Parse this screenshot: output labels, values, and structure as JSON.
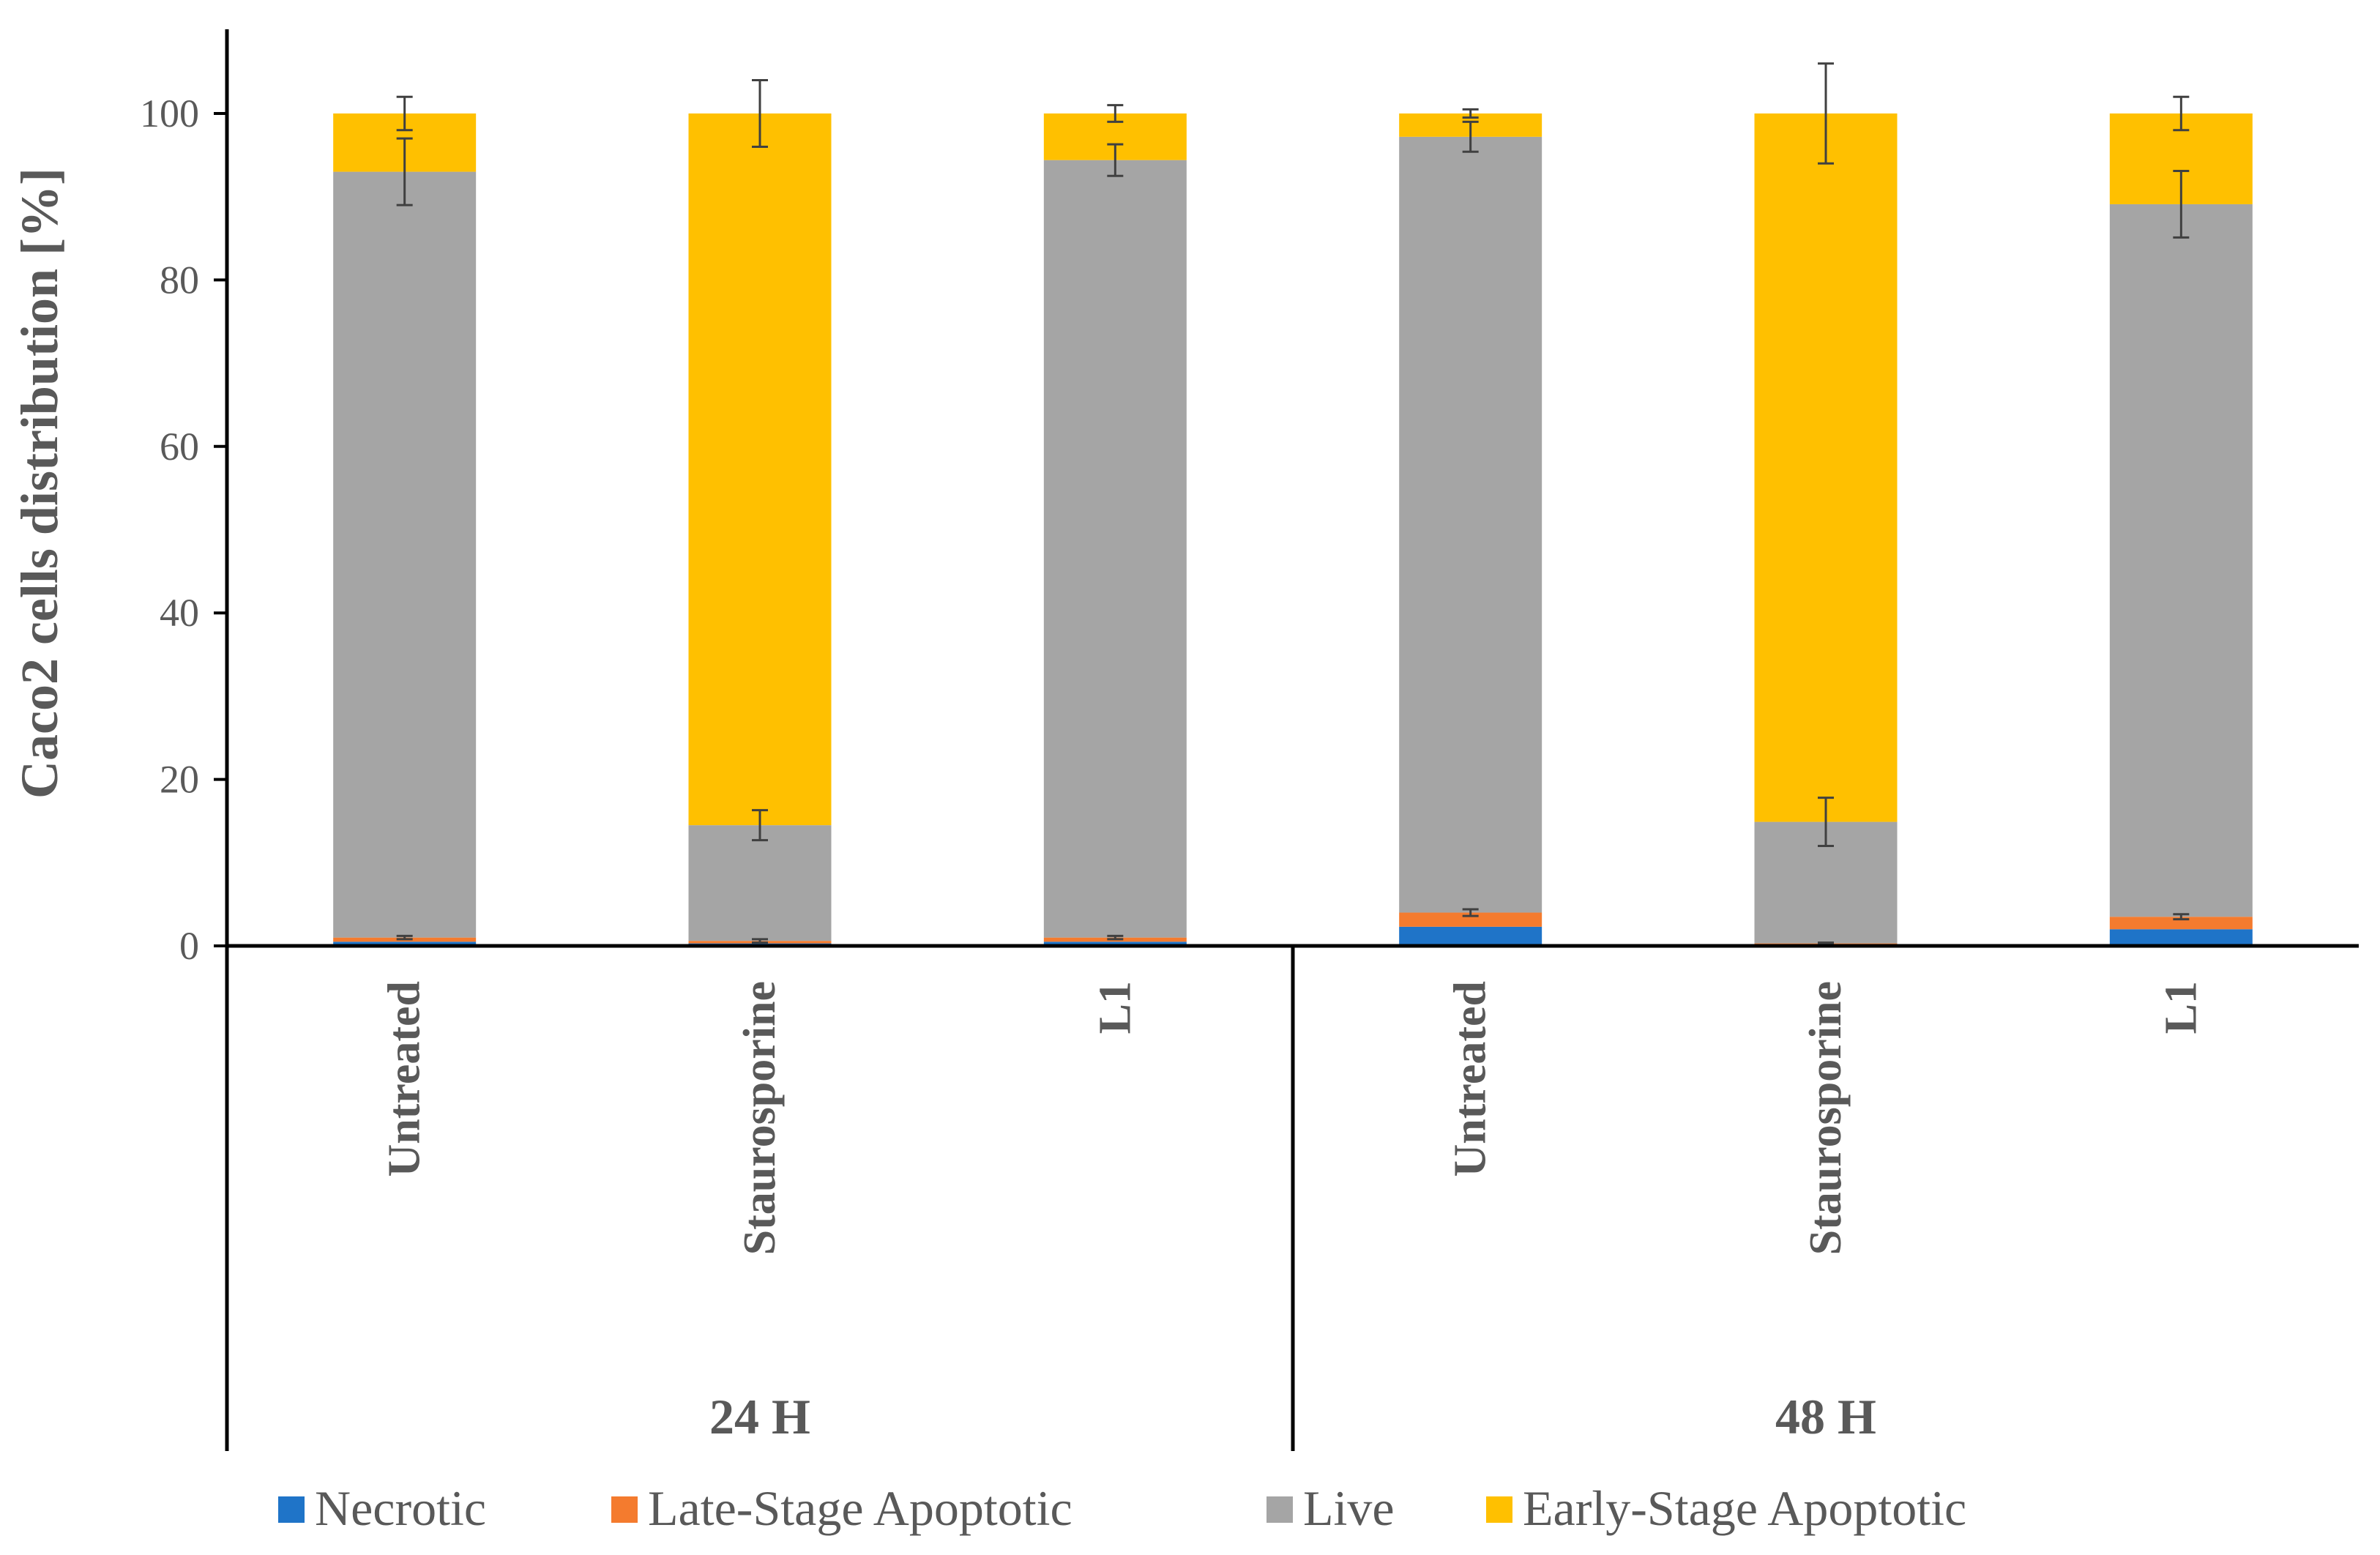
{
  "chart_data": {
    "type": "bar",
    "stacked": true,
    "ylabel": "Caco2 cells distribution [%]",
    "ylim": [
      0,
      100
    ],
    "yticks": [
      0,
      20,
      40,
      60,
      80,
      100
    ],
    "categories": [
      "Untreated",
      "Staurosporine",
      "L1",
      "Untreated",
      "Staurosporine",
      "L1"
    ],
    "groups": [
      {
        "label": "24 H",
        "categories": [
          0,
          1,
          2
        ]
      },
      {
        "label": "48 H",
        "categories": [
          3,
          4,
          5
        ]
      }
    ],
    "series": [
      {
        "name": "Necrotic",
        "color": "#1f74c8",
        "values": [
          0.5,
          0.3,
          0.5,
          2.3,
          0.2,
          2.0
        ]
      },
      {
        "name": "Late-Stage  Apoptotic",
        "color": "#f47b2e",
        "values": [
          0.5,
          0.3,
          0.5,
          1.7,
          0.1,
          1.5
        ]
      },
      {
        "name": "Live",
        "color": "#a5a5a5",
        "values": [
          92.0,
          13.9,
          93.4,
          93.2,
          14.6,
          85.6
        ]
      },
      {
        "name": "Early-Stage  Apoptotic",
        "color": "#ffc000",
        "values": [
          7.0,
          85.5,
          5.6,
          2.8,
          85.1,
          10.9
        ]
      }
    ],
    "error_bars": {
      "Live": [
        4.0,
        1.8,
        1.9,
        1.8,
        2.9,
        4.0
      ],
      "Early-Stage  Apoptotic": [
        2.0,
        4.0,
        1.0,
        0.5,
        6.0,
        2.0
      ],
      "Late-Stage  Apoptotic": [
        0.2,
        0.2,
        0.2,
        0.4,
        0.1,
        0.3
      ]
    },
    "legend": {
      "position": "bottom"
    },
    "grid": false
  }
}
